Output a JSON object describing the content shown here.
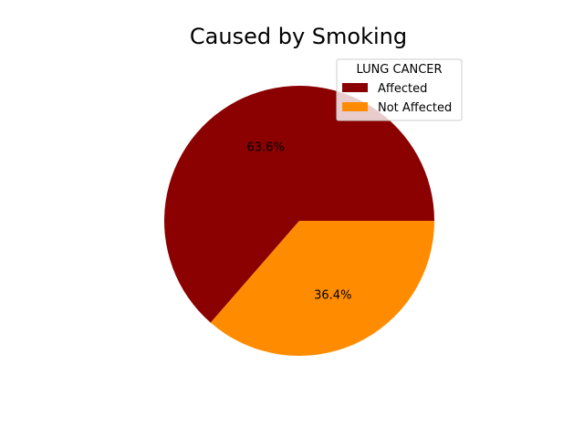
{
  "chart_data": {
    "type": "pie",
    "title": "Caused by Smoking",
    "categories": [
      "Affected",
      "Not Affected"
    ],
    "values": [
      63.6,
      36.4
    ],
    "labels": [
      "63.6%",
      "36.4%"
    ],
    "colors": [
      "#8b0000",
      "#ff8c00"
    ],
    "start_angle": 0,
    "direction": "counterclockwise",
    "legend": {
      "title": "LUNG CANCER",
      "placement": "top-right",
      "entries": [
        "Affected",
        "Not Affected"
      ]
    }
  }
}
